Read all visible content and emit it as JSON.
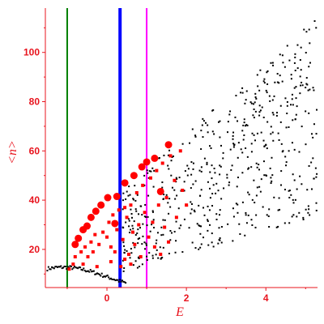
{
  "chart_data": {
    "type": "scatter",
    "title": "",
    "xlabel": "E",
    "ylabel": "<n>",
    "xlim": [
      -1.55,
      5.3
    ],
    "ylim": [
      4.5,
      118
    ],
    "xticks": [
      0,
      2,
      4
    ],
    "yticks": [
      20,
      40,
      60,
      80,
      100
    ],
    "grid": false,
    "legend": "none",
    "colors": {
      "axis": "#e8141e",
      "black_points": "#000000",
      "red_points": "#ff0000",
      "vline_green": "#008000",
      "vline_blue": "#0000ff",
      "vline_magenta": "#ff00ff"
    },
    "vlines": [
      {
        "x": -1.0,
        "color": "#008000",
        "weight": "thin"
      },
      {
        "x": 0.33,
        "color": "#0000ff",
        "weight": "thick"
      },
      {
        "x": 1.0,
        "color": "#ff00ff",
        "weight": "thin"
      }
    ],
    "red_large": [
      [
        -0.8,
        22
      ],
      [
        -0.72,
        24.5
      ],
      [
        -0.6,
        28
      ],
      [
        -0.5,
        29.5
      ],
      [
        -0.4,
        33
      ],
      [
        -0.28,
        35.5
      ],
      [
        -0.15,
        38
      ],
      [
        0.02,
        41
      ],
      [
        0.25,
        41.5
      ],
      [
        0.45,
        47
      ],
      [
        0.68,
        50
      ],
      [
        0.88,
        53.5
      ],
      [
        1.0,
        55.5
      ],
      [
        1.2,
        57
      ],
      [
        1.55,
        62.5
      ],
      [
        1.35,
        43.5
      ],
      [
        0.2,
        30.5
      ]
    ],
    "red_small": [
      [
        -0.95,
        12
      ],
      [
        -0.85,
        14
      ],
      [
        -0.8,
        17
      ],
      [
        -0.65,
        19
      ],
      [
        -0.55,
        21
      ],
      [
        -0.48,
        17
      ],
      [
        -0.4,
        23
      ],
      [
        -0.35,
        19
      ],
      [
        -0.3,
        26
      ],
      [
        -0.2,
        22
      ],
      [
        -0.1,
        27
      ],
      [
        0.0,
        25
      ],
      [
        0.05,
        31
      ],
      [
        0.1,
        21
      ],
      [
        0.15,
        34
      ],
      [
        0.2,
        19
      ],
      [
        0.25,
        28
      ],
      [
        0.3,
        36
      ],
      [
        0.35,
        13
      ],
      [
        0.4,
        24
      ],
      [
        0.45,
        16
      ],
      [
        0.5,
        33
      ],
      [
        0.55,
        18
      ],
      [
        0.6,
        38
      ],
      [
        0.65,
        27
      ],
      [
        0.7,
        22
      ],
      [
        0.75,
        43
      ],
      [
        0.8,
        30
      ],
      [
        0.85,
        17
      ],
      [
        0.9,
        46
      ],
      [
        0.95,
        35
      ],
      [
        1.05,
        25
      ],
      [
        1.1,
        49
      ],
      [
        1.15,
        31
      ],
      [
        1.2,
        21
      ],
      [
        1.25,
        52
      ],
      [
        1.3,
        38
      ],
      [
        1.4,
        55
      ],
      [
        1.45,
        29
      ],
      [
        1.5,
        41
      ],
      [
        1.6,
        58
      ],
      [
        1.7,
        48
      ],
      [
        1.75,
        33
      ],
      [
        1.85,
        60
      ],
      [
        1.9,
        44
      ],
      [
        2.0,
        38
      ],
      [
        -0.6,
        14
      ],
      [
        0.1,
        15
      ],
      [
        0.6,
        14
      ],
      [
        1.35,
        18
      ],
      [
        -0.25,
        13
      ],
      [
        0.45,
        37
      ],
      [
        1.55,
        23
      ]
    ]
  }
}
